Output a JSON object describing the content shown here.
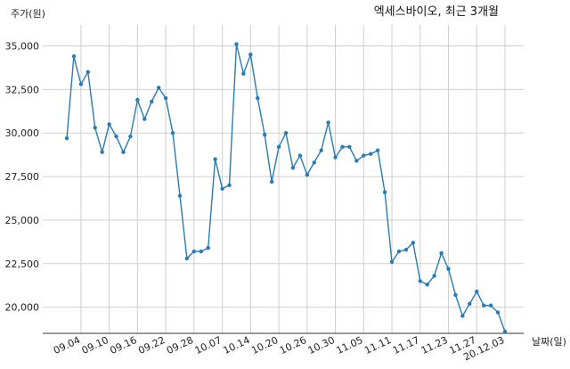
{
  "chart_data": {
    "type": "line",
    "title": "엑세스바이오, 최근 3개월",
    "ylabel": "주가(원)",
    "xlabel": "날짜(일)",
    "ylim": [
      18500,
      36200
    ],
    "y_ticks": [
      20000,
      22500,
      25000,
      27500,
      30000,
      32500,
      35000
    ],
    "y_tick_labels": [
      "20,000",
      "22,500",
      "25,000",
      "27,500",
      "30,000",
      "32,500",
      "35,000"
    ],
    "x_tick_labels": [
      "09.04",
      "09.10",
      "09.16",
      "09.22",
      "09.28",
      "10.07",
      "10.14",
      "10.20",
      "10.26",
      "10.30",
      "11.05",
      "11.11",
      "11.17",
      "11.23",
      "11.27",
      "20.12.03"
    ],
    "x_tick_positions": [
      2,
      6,
      10,
      14,
      18,
      22,
      26,
      30,
      34,
      38,
      42,
      46,
      50,
      54,
      58,
      62
    ],
    "grid": true,
    "line_color": "#2b7bb0",
    "series": [
      {
        "values": [
          29700,
          34400,
          32800,
          33500,
          30300,
          28900,
          30500,
          29800,
          28900,
          29800,
          31900,
          30800,
          31800,
          32600,
          32000,
          30000,
          26400,
          22800,
          23200,
          23200,
          23400,
          28500,
          26800,
          27000,
          35100,
          33400,
          34500,
          32000,
          29900,
          27200,
          29200,
          30000,
          28000,
          28700,
          27600,
          28300,
          29000,
          30600,
          28600,
          29200,
          29200,
          28400,
          28700,
          28800,
          29000,
          26600,
          22600,
          23200,
          23300,
          23700,
          21500,
          21300,
          21800,
          23100,
          22200,
          20700,
          19500,
          20200,
          20900,
          20100,
          20100,
          19700,
          18600
        ]
      }
    ]
  }
}
